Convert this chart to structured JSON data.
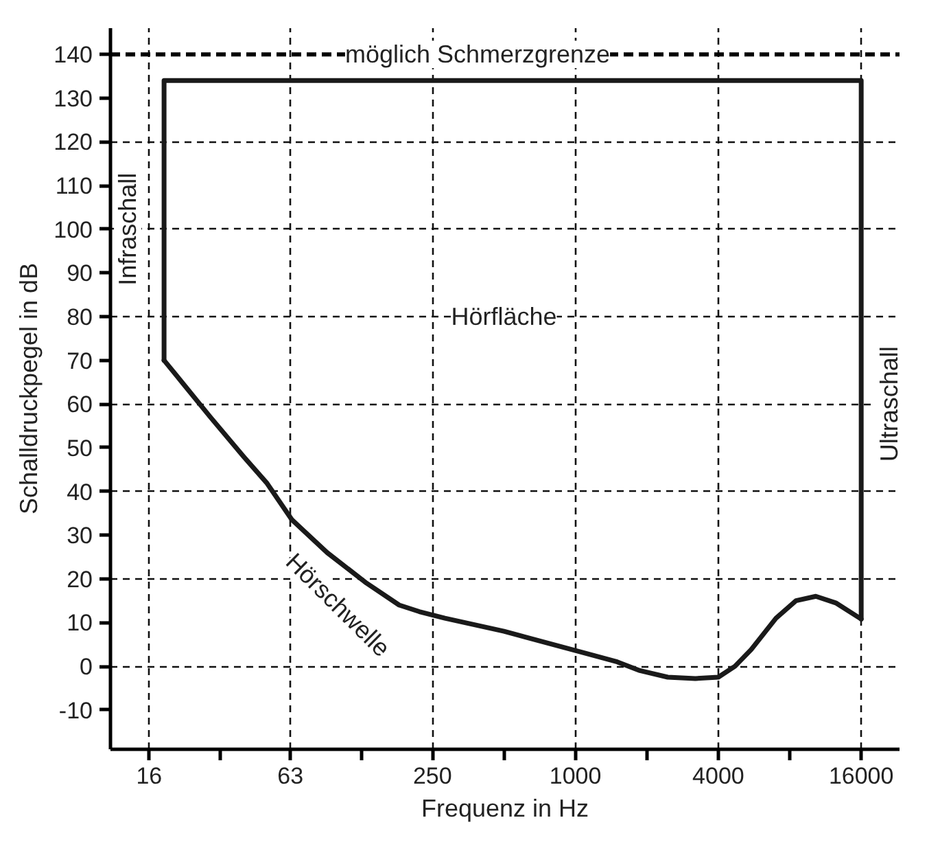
{
  "chart_data": {
    "type": "line",
    "xlabel": "Frequenz in Hz",
    "ylabel": "Schalldruckpegel in dB",
    "log": "x",
    "xlim": [
      11,
      23200
    ],
    "ylim": [
      -19,
      146
    ],
    "xticks": [
      16,
      {
        "value": 32,
        "label": null
      },
      63,
      {
        "value": 125,
        "label": null
      },
      250,
      {
        "value": 500,
        "label": null
      },
      1000,
      {
        "value": 2000,
        "label": null
      },
      4000,
      {
        "value": 8000,
        "label": null
      },
      16000
    ],
    "yticks": [
      -10,
      0,
      10,
      20,
      30,
      40,
      50,
      60,
      70,
      80,
      90,
      100,
      110,
      120,
      130,
      140
    ],
    "grid": true,
    "line_style": "solid",
    "marker": "none",
    "series": [
      {
        "color": "#1a1a1a",
        "x": [
          18.5,
          18.5,
          16000,
          16000
        ],
        "values": [
          70,
          134,
          134,
          10.8
        ]
      },
      {
        "color": "#1a1a1a",
        "x": [
          18.5,
          22,
          29,
          40,
          50,
          64,
          90,
          132,
          181,
          220,
          282,
          500,
          1030,
          1500,
          1870,
          2450,
          3200,
          4000,
          4700,
          5500,
          7000,
          8500,
          10300,
          12500,
          16000
        ],
        "values": [
          70,
          65,
          57,
          48,
          42,
          33.5,
          26,
          19,
          14,
          12.5,
          11,
          8,
          3.4,
          1,
          -1,
          -2.5,
          -2.8,
          -2.5,
          0,
          3.8,
          11,
          15,
          16,
          14.5,
          10.8
        ]
      }
    ],
    "ref_lines": [
      {
        "axis": "y",
        "value": 140,
        "label": "möglich Schmerzgrenze",
        "line_style": "dashed",
        "color": "#000000"
      }
    ],
    "annotations": [
      "Infraschall",
      "Hörfläche",
      "Hörschwelle",
      "Ultraschall"
    ]
  }
}
